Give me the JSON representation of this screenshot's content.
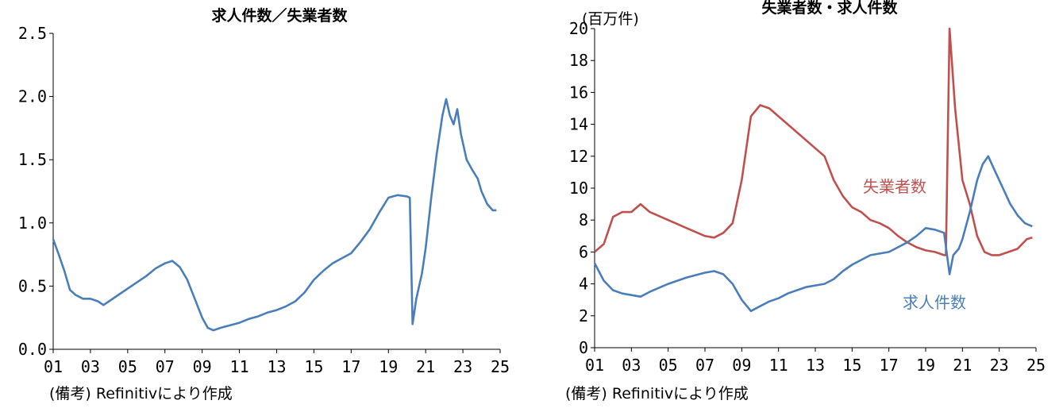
{
  "chart_data": [
    {
      "type": "line",
      "title": "求人件数／失業者数",
      "note": "(備考) Refinitivにより作成",
      "ylim": [
        0,
        2.5
      ],
      "yticks": [
        "0.0",
        "0.5",
        "1.0",
        "1.5",
        "2.0",
        "2.5"
      ],
      "xticks": [
        "01",
        "03",
        "05",
        "07",
        "09",
        "11",
        "13",
        "15",
        "17",
        "19",
        "21",
        "23",
        "25"
      ],
      "xlim": [
        2001,
        2025
      ],
      "color": "#4a7ebb",
      "series": [
        {
          "x": [
            2001.0,
            2001.3,
            2001.6,
            2001.9,
            2002.2,
            2002.6,
            2003.0,
            2003.4,
            2003.7,
            2004.0,
            2004.5,
            2005.0,
            2005.5,
            2006.0,
            2006.5,
            2007.0,
            2007.4,
            2007.8,
            2008.2,
            2008.6,
            2009.0,
            2009.3,
            2009.6,
            2010.0,
            2010.5,
            2011.0,
            2011.5,
            2012.0,
            2012.5,
            2013.0,
            2013.5,
            2014.0,
            2014.5,
            2015.0,
            2015.5,
            2016.0,
            2016.5,
            2017.0,
            2017.5,
            2018.0,
            2018.5,
            2019.0,
            2019.5,
            2020.0,
            2020.15,
            2020.3,
            2020.5,
            2020.8,
            2021.0,
            2021.3,
            2021.6,
            2021.9,
            2022.1,
            2022.3,
            2022.5,
            2022.7,
            2022.9,
            2023.2,
            2023.5,
            2023.8,
            2024.0,
            2024.3,
            2024.6,
            2024.8
          ],
          "y": [
            0.87,
            0.75,
            0.62,
            0.47,
            0.43,
            0.4,
            0.4,
            0.38,
            0.35,
            0.38,
            0.43,
            0.48,
            0.53,
            0.58,
            0.64,
            0.68,
            0.7,
            0.65,
            0.55,
            0.4,
            0.25,
            0.17,
            0.15,
            0.17,
            0.19,
            0.21,
            0.24,
            0.26,
            0.29,
            0.31,
            0.34,
            0.38,
            0.45,
            0.55,
            0.62,
            0.68,
            0.72,
            0.76,
            0.85,
            0.95,
            1.08,
            1.2,
            1.22,
            1.21,
            1.2,
            0.2,
            0.4,
            0.6,
            0.8,
            1.2,
            1.55,
            1.85,
            1.98,
            1.85,
            1.78,
            1.9,
            1.7,
            1.5,
            1.42,
            1.35,
            1.25,
            1.15,
            1.1,
            1.1
          ]
        }
      ]
    },
    {
      "type": "line",
      "title": "失業者数・求人件数",
      "unit": "(百万件)",
      "note": "(備考) Refinitivにより作成",
      "ylim": [
        0,
        20
      ],
      "yticks": [
        "0",
        "2",
        "4",
        "6",
        "8",
        "10",
        "12",
        "14",
        "16",
        "18",
        "20"
      ],
      "xticks": [
        "01",
        "03",
        "05",
        "07",
        "09",
        "11",
        "13",
        "15",
        "17",
        "19",
        "21",
        "23",
        "25"
      ],
      "xlim": [
        2001,
        2025
      ],
      "series": [
        {
          "name": "失業者数",
          "color": "#c0504d",
          "x": [
            2001.0,
            2001.5,
            2002.0,
            2002.5,
            2003.0,
            2003.5,
            2004.0,
            2005.0,
            2006.0,
            2007.0,
            2007.5,
            2008.0,
            2008.5,
            2009.0,
            2009.5,
            2010.0,
            2010.5,
            2011.0,
            2011.5,
            2012.0,
            2012.5,
            2013.0,
            2013.5,
            2014.0,
            2014.5,
            2015.0,
            2015.5,
            2016.0,
            2016.5,
            2017.0,
            2017.5,
            2018.0,
            2018.5,
            2019.0,
            2019.5,
            2020.0,
            2020.1,
            2020.3,
            2020.6,
            2021.0,
            2021.4,
            2021.8,
            2022.2,
            2022.6,
            2023.0,
            2023.5,
            2024.0,
            2024.5,
            2024.8
          ],
          "y": [
            6.0,
            6.5,
            8.2,
            8.5,
            8.5,
            9.0,
            8.5,
            8.0,
            7.5,
            7.0,
            6.9,
            7.2,
            7.8,
            10.5,
            14.5,
            15.2,
            15.0,
            14.5,
            14.0,
            13.5,
            13.0,
            12.5,
            12.0,
            10.5,
            9.5,
            8.8,
            8.5,
            8.0,
            7.8,
            7.5,
            7.0,
            6.6,
            6.3,
            6.1,
            6.0,
            5.8,
            5.8,
            20.0,
            15.0,
            10.5,
            9.0,
            7.0,
            6.0,
            5.8,
            5.8,
            6.0,
            6.2,
            6.8,
            6.9
          ]
        },
        {
          "name": "求人件数",
          "color": "#4a7ebb",
          "x": [
            2001.0,
            2001.5,
            2002.0,
            2002.5,
            2003.0,
            2003.5,
            2004.0,
            2005.0,
            2006.0,
            2007.0,
            2007.5,
            2008.0,
            2008.5,
            2009.0,
            2009.5,
            2010.0,
            2010.5,
            2011.0,
            2011.5,
            2012.0,
            2012.5,
            2013.0,
            2013.5,
            2014.0,
            2014.5,
            2015.0,
            2015.5,
            2016.0,
            2016.5,
            2017.0,
            2017.5,
            2018.0,
            2018.5,
            2019.0,
            2019.5,
            2020.0,
            2020.3,
            2020.5,
            2020.8,
            2021.0,
            2021.4,
            2021.8,
            2022.1,
            2022.4,
            2022.8,
            2023.2,
            2023.6,
            2024.0,
            2024.4,
            2024.8
          ],
          "y": [
            5.3,
            4.2,
            3.6,
            3.4,
            3.3,
            3.2,
            3.5,
            4.0,
            4.4,
            4.7,
            4.8,
            4.6,
            4.0,
            3.0,
            2.3,
            2.6,
            2.9,
            3.1,
            3.4,
            3.6,
            3.8,
            3.9,
            4.0,
            4.3,
            4.8,
            5.2,
            5.5,
            5.8,
            5.9,
            6.0,
            6.3,
            6.6,
            7.0,
            7.5,
            7.4,
            7.2,
            4.6,
            5.8,
            6.2,
            6.8,
            8.5,
            10.5,
            11.5,
            12.0,
            11.0,
            10.0,
            9.0,
            8.3,
            7.8,
            7.6
          ]
        }
      ]
    }
  ]
}
